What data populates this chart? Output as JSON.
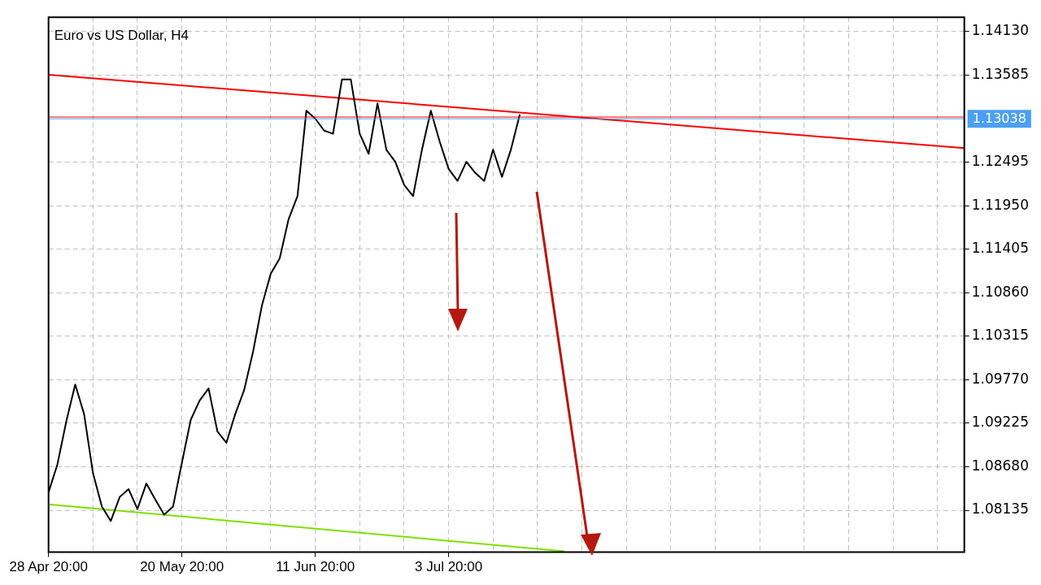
{
  "chart_data": {
    "type": "line",
    "title": "Euro vs US Dollar, H4",
    "categories": [
      "28 Apr 20:00",
      null,
      null,
      null,
      null,
      null,
      null,
      null,
      null,
      null,
      null,
      null,
      null,
      null,
      null,
      "20 May 20:00",
      null,
      null,
      null,
      null,
      null,
      null,
      null,
      null,
      null,
      null,
      null,
      null,
      null,
      null,
      "11 Jun 20:00",
      null,
      null,
      null,
      null,
      null,
      null,
      null,
      null,
      null,
      null,
      null,
      null,
      null,
      null,
      "3 Jul 20:00",
      null,
      null,
      null,
      null,
      null,
      null,
      null,
      null,
      null,
      null,
      null,
      null,
      null,
      null,
      null,
      null,
      null,
      null,
      null,
      null,
      null,
      null,
      null,
      null,
      null,
      null,
      null,
      null,
      null,
      null,
      null,
      null,
      null,
      null,
      null,
      null,
      null,
      null,
      null,
      null,
      null,
      null,
      null,
      null,
      null,
      null,
      null,
      null,
      null,
      null,
      null,
      null,
      null,
      null,
      null,
      null,
      null,
      null
    ],
    "series": [
      {
        "color": "#000000",
        "values": [
          1.0836,
          1.0871,
          1.0925,
          1.0971,
          1.0934,
          1.086,
          1.0818,
          1.08,
          1.083,
          1.084,
          1.0815,
          1.0847,
          1.0827,
          1.0808,
          1.0818,
          1.0873,
          1.0927,
          1.0951,
          1.0966,
          1.0912,
          1.0898,
          1.0934,
          1.0964,
          1.1012,
          1.107,
          1.111,
          1.1129,
          1.1178,
          1.1207,
          1.1314,
          1.1304,
          1.1289,
          1.1285,
          1.1353,
          1.1353,
          1.1285,
          1.126,
          1.1323,
          1.1265,
          1.125,
          1.1221,
          1.1207,
          1.1265,
          1.1314,
          1.1275,
          1.1241,
          1.1226,
          1.125,
          1.1236,
          1.1226,
          1.1265,
          1.1231,
          1.1265,
          1.1309,
          null,
          null,
          null,
          null,
          null,
          null,
          null,
          null,
          null,
          null,
          null,
          null,
          null,
          null,
          null,
          null,
          null,
          null,
          null,
          null,
          null,
          null,
          null,
          null,
          null,
          null,
          null,
          null,
          null,
          null,
          null,
          null,
          null,
          null,
          null,
          null,
          null,
          null,
          null,
          null,
          null,
          null,
          null,
          null,
          null,
          null,
          null,
          null,
          null,
          null
        ]
      },
      {
        "color": "#ff0000",
        "values": [
          1.1359,
          null,
          null,
          null,
          null,
          null,
          null,
          null,
          null,
          null,
          null,
          null,
          null,
          null,
          null,
          null,
          null,
          null,
          null,
          null,
          null,
          null,
          null,
          null,
          null,
          null,
          null,
          null,
          null,
          null,
          null,
          null,
          null,
          null,
          null,
          null,
          null,
          null,
          null,
          null,
          null,
          null,
          null,
          null,
          null,
          null,
          null,
          null,
          null,
          null,
          null,
          null,
          null,
          null,
          null,
          null,
          null,
          null,
          null,
          null,
          null,
          null,
          null,
          null,
          null,
          null,
          null,
          null,
          null,
          null,
          null,
          null,
          null,
          null,
          null,
          null,
          null,
          null,
          null,
          null,
          null,
          null,
          null,
          null,
          null,
          null,
          null,
          null,
          null,
          null,
          null,
          null,
          null,
          null,
          null,
          null,
          null,
          null,
          null,
          null,
          null,
          null,
          null,
          1.1267
        ]
      },
      {
        "color": "#7fe000",
        "values": [
          1.0821,
          null,
          null,
          null,
          null,
          null,
          null,
          null,
          null,
          null,
          null,
          null,
          null,
          null,
          null,
          null,
          null,
          null,
          null,
          null,
          null,
          null,
          null,
          null,
          null,
          null,
          null,
          null,
          null,
          null,
          null,
          null,
          null,
          null,
          null,
          null,
          null,
          null,
          null,
          null,
          null,
          null,
          null,
          null,
          null,
          null,
          null,
          null,
          null,
          null,
          null,
          null,
          null,
          null,
          null,
          null,
          null,
          null,
          1.0762,
          null,
          null,
          null,
          null,
          null,
          null,
          null,
          null,
          null,
          null,
          null,
          null,
          null,
          null,
          null,
          null,
          null,
          null,
          null,
          null,
          null,
          null,
          null,
          null,
          null,
          null,
          null,
          null,
          null,
          null,
          null,
          null,
          null,
          null,
          null,
          null,
          null,
          null,
          null,
          null,
          null,
          null,
          null,
          null,
          null
        ]
      }
    ],
    "ylim": [
      1.0761,
      1.1431
    ],
    "yticks": [
      {
        "value": 1.08135,
        "label": "1.08135"
      },
      {
        "value": 1.0868,
        "label": "1.08680"
      },
      {
        "value": 1.09225,
        "label": "1.09225"
      },
      {
        "value": 1.0977,
        "label": "1.09770"
      },
      {
        "value": 1.10315,
        "label": "1.10315"
      },
      {
        "value": 1.1086,
        "label": "1.10860"
      },
      {
        "value": 1.11405,
        "label": "1.11405"
      },
      {
        "value": 1.1195,
        "label": "1.11950"
      },
      {
        "value": 1.12495,
        "label": "1.12495"
      },
      {
        "value": 1.13585,
        "label": "1.13585"
      },
      {
        "value": 1.1413,
        "label": "1.14130"
      }
    ],
    "ref_lines": [
      {
        "axis": "y",
        "value": 1.13038,
        "label": "1.13038",
        "color": "#4a9ff5"
      },
      {
        "axis": "y",
        "value": 1.1306,
        "color": "#ff0000"
      }
    ],
    "grid": true,
    "marker": "none",
    "line_style": "solid"
  }
}
